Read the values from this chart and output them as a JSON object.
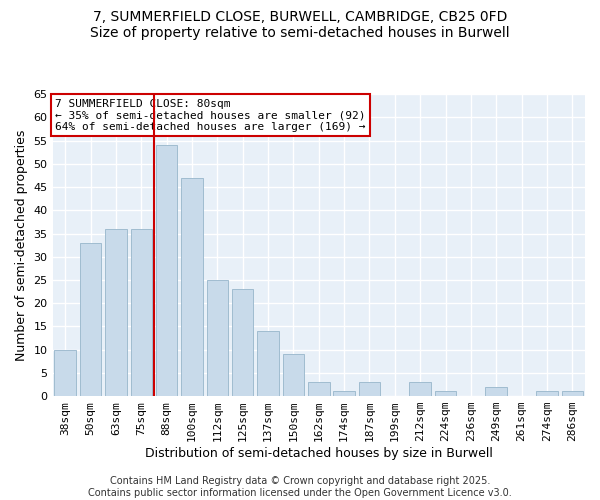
{
  "title": "7, SUMMERFIELD CLOSE, BURWELL, CAMBRIDGE, CB25 0FD",
  "subtitle": "Size of property relative to semi-detached houses in Burwell",
  "xlabel": "Distribution of semi-detached houses by size in Burwell",
  "ylabel": "Number of semi-detached properties",
  "bar_labels": [
    "38sqm",
    "50sqm",
    "63sqm",
    "75sqm",
    "88sqm",
    "100sqm",
    "112sqm",
    "125sqm",
    "137sqm",
    "150sqm",
    "162sqm",
    "174sqm",
    "187sqm",
    "199sqm",
    "212sqm",
    "224sqm",
    "236sqm",
    "249sqm",
    "261sqm",
    "274sqm",
    "286sqm"
  ],
  "bar_values": [
    10,
    33,
    36,
    36,
    54,
    47,
    25,
    23,
    14,
    9,
    3,
    1,
    3,
    0,
    3,
    1,
    0,
    2,
    0,
    1,
    1
  ],
  "bar_color": "#c8daea",
  "bar_edge_color": "#a0bcd0",
  "vline_x_idx": 4,
  "vline_color": "#cc0000",
  "annotation_title": "7 SUMMERFIELD CLOSE: 80sqm",
  "annotation_line1": "← 35% of semi-detached houses are smaller (92)",
  "annotation_line2": "64% of semi-detached houses are larger (169) →",
  "annotation_box_color": "#ffffff",
  "annotation_box_edge": "#cc0000",
  "ylim": [
    0,
    65
  ],
  "yticks": [
    0,
    5,
    10,
    15,
    20,
    25,
    30,
    35,
    40,
    45,
    50,
    55,
    60,
    65
  ],
  "footer_line1": "Contains HM Land Registry data © Crown copyright and database right 2025.",
  "footer_line2": "Contains public sector information licensed under the Open Government Licence v3.0.",
  "bg_color": "#ffffff",
  "plot_bg_color": "#e8f0f8",
  "grid_color": "#ffffff",
  "title_fontsize": 10,
  "label_fontsize": 9,
  "tick_fontsize": 8,
  "footer_fontsize": 7,
  "annotation_fontsize": 8
}
